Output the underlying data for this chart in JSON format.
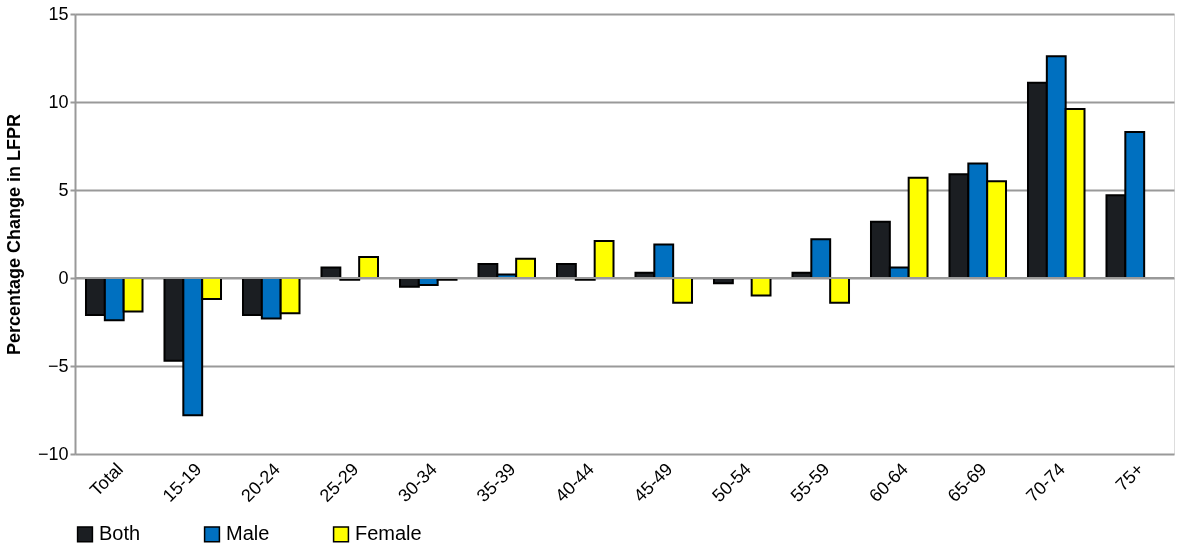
{
  "chart_data": {
    "type": "bar",
    "ylabel": "Percentage Change in LFPR",
    "categories": [
      "Total",
      "15-19",
      "20-24",
      "25-29",
      "30-34",
      "35-39",
      "40-44",
      "45-49",
      "50-54",
      "55-59",
      "60-64",
      "65-69",
      "70-74",
      "75+"
    ],
    "series": [
      {
        "name": "Both",
        "color": "#1b1e22",
        "values": [
          -2.1,
          -4.7,
          -2.1,
          0.6,
          -0.5,
          0.8,
          0.8,
          0.3,
          -0.3,
          0.3,
          3.2,
          5.9,
          11.1,
          4.7
        ]
      },
      {
        "name": "Male",
        "color": "#0070c0",
        "values": [
          -2.4,
          -7.8,
          -2.3,
          -0.1,
          -0.4,
          0.2,
          -0.1,
          1.9,
          null,
          2.2,
          0.6,
          6.5,
          12.6,
          8.3
        ]
      },
      {
        "name": "Female",
        "color": "#ffff00",
        "values": [
          -1.9,
          -1.2,
          -2.0,
          1.2,
          -0.1,
          1.1,
          2.1,
          -1.4,
          -1.0,
          -1.4,
          5.7,
          5.5,
          9.6,
          null
        ]
      }
    ],
    "ylim": [
      -10,
      15
    ],
    "yticks": [
      -10,
      -5,
      0,
      5,
      10,
      15
    ],
    "grid": "y",
    "legend": "bottom"
  }
}
